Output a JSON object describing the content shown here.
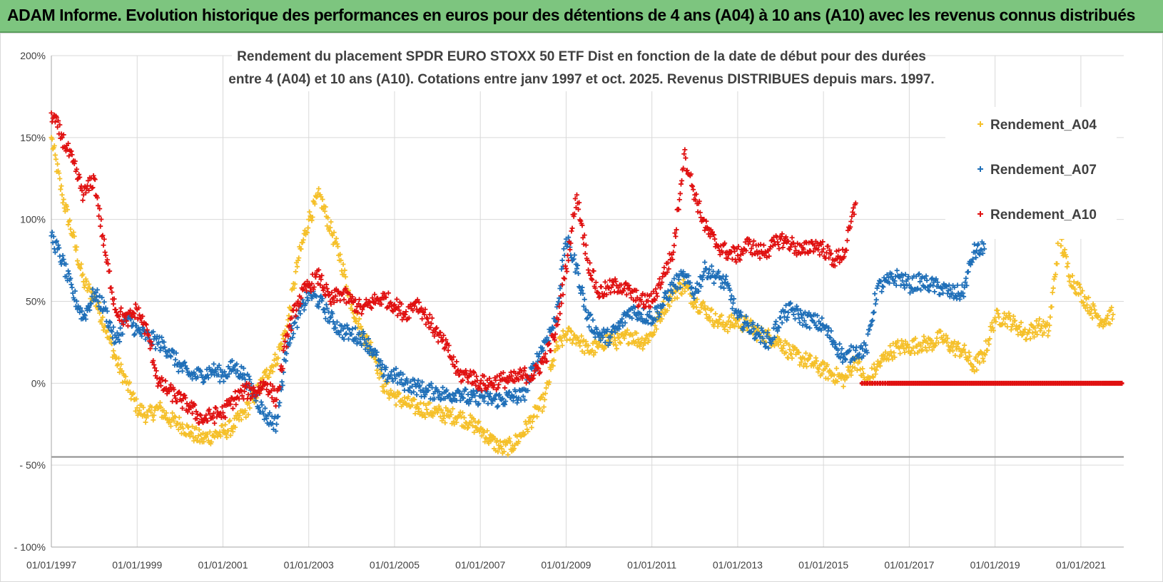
{
  "header": {
    "title": "ADAM Informe. Evolution historique des performances en euros pour des détentions de 4 ans (A04) à 10 ans (A10) avec les revenus connus distribués"
  },
  "colors": {
    "A04": "#f5c02a",
    "A07": "#1f6fb8",
    "A10": "#e01010",
    "banner": "#7dc57f",
    "grid": "#d9d9d9"
  },
  "chart_data": {
    "type": "scatter",
    "title": [
      "Rendement du placement SPDR EURO STOXX 50 ETF Dist en fonction de la date de début pour des durées",
      "entre 4 (A04) et 10 ans (A10).  Cotations entre janv 1997 et oct. 2025.  Revenus DISTRIBUES depuis mars. 1997."
    ],
    "xlabel": "",
    "ylabel": "",
    "xlim": [
      1997.0,
      2022.0
    ],
    "ylim": [
      -100,
      200
    ],
    "y_ticks": [
      200,
      150,
      100,
      50,
      0,
      -50,
      -100
    ],
    "y_tick_labels": [
      "200%",
      "150%",
      "100%",
      "50%",
      "0%",
      "- 50%",
      "- 100%"
    ],
    "x_ticks": [
      1997,
      1999,
      2001,
      2003,
      2005,
      2007,
      2009,
      2011,
      2013,
      2015,
      2017,
      2019,
      2021
    ],
    "x_tick_labels": [
      "01/01/1997",
      "01/01/1999",
      "01/01/2001",
      "01/01/2003",
      "01/01/2005",
      "01/01/2007",
      "01/01/2009",
      "01/01/2011",
      "01/01/2013",
      "01/01/2015",
      "01/01/2017",
      "01/01/2019",
      "01/01/2021"
    ],
    "legend_position": "top-right",
    "grid": true,
    "series": [
      {
        "name": "Rendement_A04",
        "color": "#f5c02a",
        "x": [
          1997.0,
          1997.25,
          1997.5,
          1997.75,
          1998.0,
          1998.25,
          1998.5,
          1998.75,
          1999.0,
          1999.25,
          1999.5,
          1999.75,
          2000.0,
          2000.25,
          2000.5,
          2000.75,
          2001.0,
          2001.25,
          2001.5,
          2001.75,
          2002.0,
          2002.25,
          2002.5,
          2002.75,
          2003.0,
          2003.25,
          2003.5,
          2003.75,
          2004.0,
          2004.25,
          2004.5,
          2004.75,
          2005.0,
          2005.25,
          2005.5,
          2005.75,
          2006.0,
          2006.25,
          2006.5,
          2006.75,
          2007.0,
          2007.25,
          2007.5,
          2007.75,
          2008.0,
          2008.25,
          2008.5,
          2008.75,
          2009.0,
          2009.25,
          2009.5,
          2009.75,
          2010.0,
          2010.25,
          2010.5,
          2010.75,
          2011.0,
          2011.25,
          2011.5,
          2011.75,
          2012.0,
          2012.25,
          2012.5,
          2012.75,
          2013.0,
          2013.25,
          2013.5,
          2013.75,
          2014.0,
          2014.25,
          2014.5,
          2014.75,
          2015.0,
          2015.25,
          2015.5,
          2015.75,
          2016.0,
          2016.25,
          2016.5,
          2016.75,
          2017.0,
          2017.25,
          2017.5,
          2017.75,
          2018.0,
          2018.25,
          2018.5,
          2018.75,
          2019.0,
          2019.25,
          2019.5,
          2019.75,
          2020.0,
          2020.25,
          2020.5,
          2020.75,
          2021.0,
          2021.25,
          2021.5,
          2021.75
        ],
        "values": [
          150,
          115,
          90,
          62,
          52,
          35,
          15,
          0,
          -15,
          -20,
          -15,
          -22,
          -25,
          -30,
          -34,
          -32,
          -30,
          -26,
          -18,
          -8,
          5,
          15,
          35,
          75,
          100,
          115,
          95,
          75,
          48,
          30,
          20,
          -2,
          -8,
          -12,
          -15,
          -16,
          -18,
          -20,
          -20,
          -24,
          -28,
          -35,
          -40,
          -38,
          -30,
          -20,
          -10,
          20,
          30,
          28,
          20,
          22,
          28,
          25,
          30,
          25,
          30,
          45,
          55,
          60,
          50,
          45,
          38,
          36,
          38,
          35,
          30,
          28,
          25,
          18,
          15,
          12,
          8,
          5,
          2,
          15,
          0,
          10,
          18,
          22,
          22,
          24,
          24,
          28,
          22,
          20,
          10,
          18,
          40,
          40,
          35,
          30,
          35,
          32,
          90,
          65,
          55,
          45,
          38,
          42
        ]
      },
      {
        "name": "Rendement_A07",
        "color": "#1f6fb8",
        "x": [
          1997.0,
          1997.25,
          1997.5,
          1997.75,
          1998.0,
          1998.25,
          1998.5,
          1998.75,
          1999.0,
          1999.25,
          1999.5,
          1999.75,
          2000.0,
          2000.25,
          2000.5,
          2000.75,
          2001.0,
          2001.25,
          2001.5,
          2001.75,
          2002.0,
          2002.25,
          2002.5,
          2002.75,
          2003.0,
          2003.25,
          2003.5,
          2003.75,
          2004.0,
          2004.25,
          2004.5,
          2004.75,
          2005.0,
          2005.25,
          2005.5,
          2005.75,
          2006.0,
          2006.25,
          2006.5,
          2006.75,
          2007.0,
          2007.25,
          2007.5,
          2007.75,
          2008.0,
          2008.25,
          2008.5,
          2008.75,
          2009.0,
          2009.25,
          2009.5,
          2009.75,
          2010.0,
          2010.25,
          2010.5,
          2010.75,
          2011.0,
          2011.25,
          2011.5,
          2011.75,
          2012.0,
          2012.25,
          2012.5,
          2012.75,
          2013.0,
          2013.25,
          2013.5,
          2013.75,
          2014.0,
          2014.25,
          2014.5,
          2014.75,
          2015.0,
          2015.25,
          2015.5,
          2015.75,
          2016.0,
          2016.25,
          2016.5,
          2016.75,
          2017.0,
          2017.25,
          2017.5,
          2017.75,
          2018.0,
          2018.25,
          2018.5,
          2018.75
        ],
        "values": [
          90,
          75,
          55,
          40,
          55,
          45,
          25,
          40,
          32,
          28,
          25,
          20,
          10,
          5,
          5,
          8,
          5,
          10,
          5,
          -8,
          -20,
          -25,
          25,
          40,
          55,
          50,
          40,
          32,
          30,
          28,
          20,
          5,
          5,
          0,
          -2,
          -5,
          -5,
          -8,
          -5,
          -10,
          -8,
          -10,
          -10,
          -8,
          -8,
          10,
          25,
          38,
          88,
          70,
          40,
          30,
          28,
          35,
          45,
          42,
          40,
          48,
          60,
          65,
          55,
          70,
          65,
          60,
          40,
          35,
          30,
          25,
          40,
          45,
          40,
          38,
          35,
          25,
          15,
          20,
          20,
          58,
          62,
          65,
          60,
          62,
          60,
          58,
          55,
          55,
          80,
          82
        ]
      },
      {
        "name": "Rendement_A10",
        "color": "#e01010",
        "x": [
          1997.0,
          1997.25,
          1997.5,
          1997.75,
          1998.0,
          1998.25,
          1998.5,
          1998.75,
          1999.0,
          1999.25,
          1999.5,
          1999.75,
          2000.0,
          2000.25,
          2000.5,
          2000.75,
          2001.0,
          2001.25,
          2001.5,
          2001.75,
          2002.0,
          2002.25,
          2002.5,
          2002.75,
          2003.0,
          2003.25,
          2003.5,
          2003.75,
          2004.0,
          2004.25,
          2004.5,
          2004.75,
          2005.0,
          2005.25,
          2005.5,
          2005.75,
          2006.0,
          2006.25,
          2006.5,
          2006.75,
          2007.0,
          2007.25,
          2007.5,
          2007.75,
          2008.0,
          2008.25,
          2008.5,
          2008.75,
          2009.0,
          2009.25,
          2009.5,
          2009.75,
          2010.0,
          2010.25,
          2010.5,
          2010.75,
          2011.0,
          2011.25,
          2011.5,
          2011.75,
          2012.0,
          2012.25,
          2012.5,
          2012.75,
          2013.0,
          2013.25,
          2013.5,
          2013.75,
          2014.0,
          2014.25,
          2014.5,
          2014.75,
          2015.0,
          2015.25,
          2015.5,
          2015.75
        ],
        "values": [
          165,
          150,
          135,
          115,
          125,
          80,
          45,
          38,
          45,
          30,
          0,
          -5,
          -10,
          -15,
          -22,
          -20,
          -18,
          -10,
          -5,
          -5,
          0,
          -10,
          30,
          50,
          60,
          65,
          50,
          55,
          50,
          45,
          50,
          52,
          48,
          42,
          50,
          40,
          30,
          20,
          5,
          5,
          0,
          0,
          2,
          2,
          5,
          5,
          15,
          30,
          70,
          115,
          75,
          55,
          58,
          60,
          55,
          50,
          50,
          65,
          80,
          140,
          115,
          95,
          85,
          80,
          78,
          85,
          80,
          82,
          88,
          85,
          80,
          85,
          82,
          75,
          80,
          110
        ]
      },
      {
        "name": "Rendement_A10 (zero line)",
        "color": "#e01010",
        "x": [
          2015.9,
          2016.5,
          2017.0,
          2017.5,
          2018.0,
          2018.5,
          2019.0,
          2019.5,
          2020.0,
          2020.5,
          2021.0,
          2021.5,
          2021.95
        ],
        "values": [
          0,
          0,
          0,
          0,
          0,
          0,
          0,
          0,
          0,
          0,
          0,
          0,
          0
        ]
      }
    ]
  },
  "legend": [
    {
      "label": "Rendement_A04",
      "color": "#f5c02a"
    },
    {
      "label": "Rendement_A07",
      "color": "#1f6fb8"
    },
    {
      "label": "Rendement_A10",
      "color": "#e01010"
    }
  ]
}
